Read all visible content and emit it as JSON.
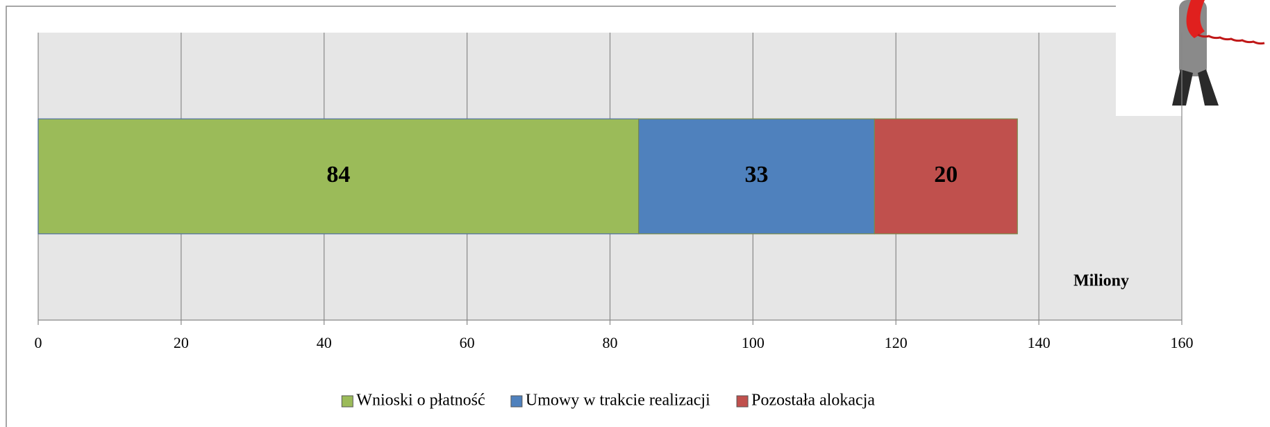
{
  "chart_data": {
    "type": "stacked_horizontal_bar",
    "categories": [
      null
    ],
    "series": [
      {
        "name": "Wnioski o płatność",
        "color": "#9bbb59",
        "values": [
          84
        ]
      },
      {
        "name": "Umowy w trakcie realizacji",
        "color": "#4f81bd",
        "values": [
          33
        ]
      },
      {
        "name": "Pozostała alokacja",
        "color": "#c0504d",
        "values": [
          20
        ]
      }
    ],
    "x_label": "Miliony",
    "xlim": [
      0,
      160
    ],
    "xticks": [
      0,
      20,
      40,
      60,
      80,
      100,
      120,
      140,
      160
    ],
    "grid": true,
    "legend": "bottom"
  }
}
